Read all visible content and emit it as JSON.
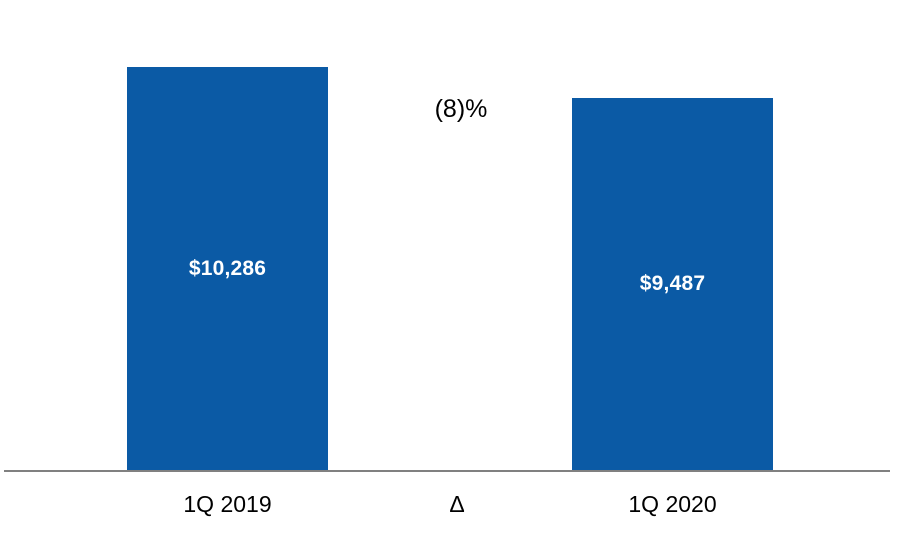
{
  "chart_data": {
    "type": "bar",
    "title": "",
    "xlabel": "",
    "ylabel": "",
    "categories": [
      "1Q 2019",
      "1Q 2020"
    ],
    "values": [
      10286,
      9487
    ],
    "bar_labels": [
      "$10,286",
      "$9,487"
    ],
    "delta_label": "(8)%",
    "delta_axis_label": "Δ",
    "ylim": [
      0,
      10286
    ],
    "grid": false,
    "legend": "none",
    "colors": {
      "bar_fill": "#0B5AA5",
      "bar_value_text": "#FFFFFF",
      "axis_line": "#808080",
      "annotation_text": "#000000",
      "background": "#FFFFFF"
    }
  }
}
